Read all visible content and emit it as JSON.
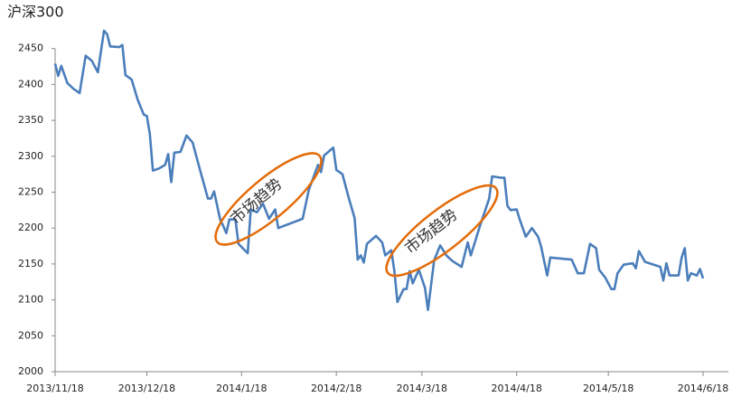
{
  "chart_data": {
    "type": "line",
    "title": "沪深300",
    "x": [
      "2013/11/18",
      "2013/11/19",
      "2013/11/20",
      "2013/11/22",
      "2013/11/24",
      "2013/11/26",
      "2013/11/28",
      "2013/11/30",
      "2013/12/2",
      "2013/12/4",
      "2013/12/5",
      "2013/12/6",
      "2013/12/9",
      "2013/12/10",
      "2013/12/11",
      "2013/12/13",
      "2013/12/15",
      "2013/12/17",
      "2013/12/18",
      "2013/12/19",
      "2013/12/20",
      "2013/12/22",
      "2013/12/24",
      "2013/12/25",
      "2013/12/26",
      "2013/12/27",
      "2013/12/29",
      "2013/12/31",
      "2014/1/2",
      "2014/1/4",
      "2014/1/7",
      "2014/1/8",
      "2014/1/9",
      "2014/1/11",
      "2014/1/12",
      "2014/1/13",
      "2014/1/14",
      "2014/1/16",
      "2014/1/17",
      "2014/1/20",
      "2014/1/21",
      "2014/1/23",
      "2014/1/25",
      "2014/1/27",
      "2014/1/29",
      "2014/1/30",
      "2014/2/7",
      "2014/2/9",
      "2014/2/12",
      "2014/2/13",
      "2014/2/14",
      "2014/2/17",
      "2014/2/18",
      "2014/2/20",
      "2014/2/22",
      "2014/2/24",
      "2014/2/25",
      "2014/2/26",
      "2014/2/27",
      "2014/2/28",
      "2014/3/3",
      "2014/3/5",
      "2014/3/6",
      "2014/3/8",
      "2014/3/9",
      "2014/3/10",
      "2014/3/12",
      "2014/3/13",
      "2014/3/14",
      "2014/3/15",
      "2014/3/17",
      "2014/3/19",
      "2014/3/20",
      "2014/3/22",
      "2014/3/24",
      "2014/3/26",
      "2014/3/28",
      "2014/3/31",
      "2014/4/2",
      "2014/4/3",
      "2014/4/6",
      "2014/4/9",
      "2014/4/10",
      "2014/4/13",
      "2014/4/14",
      "2014/4/15",
      "2014/4/16",
      "2014/4/18",
      "2014/4/19",
      "2014/4/21",
      "2014/4/23",
      "2014/4/25",
      "2014/4/26",
      "2014/4/28",
      "2014/4/29",
      "2014/5/6",
      "2014/5/8",
      "2014/5/10",
      "2014/5/12",
      "2014/5/14",
      "2014/5/15",
      "2014/5/17",
      "2014/5/19",
      "2014/5/20",
      "2014/5/21",
      "2014/5/23",
      "2014/5/26",
      "2014/5/27",
      "2014/5/28",
      "2014/5/30",
      "2014/6/4",
      "2014/6/5",
      "2014/6/6",
      "2014/6/7",
      "2014/6/10",
      "2014/6/11",
      "2014/6/12",
      "2014/6/13",
      "2014/6/14",
      "2014/6/16",
      "2014/6/17",
      "2014/6/18"
    ],
    "series": [
      {
        "color": "#4a7ebb",
        "values": [
          2429,
          2412,
          2426,
          2402,
          2394,
          2388,
          2440,
          2433,
          2417,
          2475,
          2470,
          2453,
          2452,
          2455,
          2413,
          2407,
          2379,
          2358,
          2356,
          2331,
          2280,
          2283,
          2288,
          2303,
          2264,
          2305,
          2306,
          2329,
          2319,
          2287,
          2241,
          2241,
          2251,
          2212,
          2203,
          2193,
          2212,
          2212,
          2178,
          2165,
          2226,
          2222,
          2234,
          2213,
          2226,
          2200,
          2213,
          2253,
          2288,
          2278,
          2301,
          2312,
          2281,
          2275,
          2243,
          2214,
          2156,
          2162,
          2152,
          2178,
          2189,
          2180,
          2162,
          2169,
          2140,
          2097,
          2115,
          2115,
          2140,
          2123,
          2142,
          2117,
          2086,
          2155,
          2176,
          2162,
          2154,
          2146,
          2180,
          2162,
          2203,
          2241,
          2272,
          2270,
          2270,
          2231,
          2225,
          2226,
          2212,
          2188,
          2200,
          2188,
          2174,
          2134,
          2159,
          2156,
          2137,
          2137,
          2178,
          2172,
          2142,
          2131,
          2115,
          2115,
          2137,
          2149,
          2151,
          2144,
          2168,
          2153,
          2146,
          2127,
          2151,
          2134,
          2134,
          2159,
          2172,
          2127,
          2137,
          2134,
          2143,
          2130
        ]
      }
    ],
    "xlim": [
      "2013/11/18",
      "2014/6/18"
    ],
    "xticks": [
      "2013/11/18",
      "2013/12/18",
      "2014/1/18",
      "2014/2/18",
      "2014/3/18",
      "2014/4/18",
      "2014/5/18",
      "2014/6/18"
    ],
    "ylim": [
      2000,
      2500
    ],
    "yticks": [
      2000,
      2050,
      2100,
      2150,
      2200,
      2250,
      2300,
      2350,
      2400,
      2450
    ],
    "annotations": [
      "市场趋势",
      "市场趋势"
    ]
  }
}
